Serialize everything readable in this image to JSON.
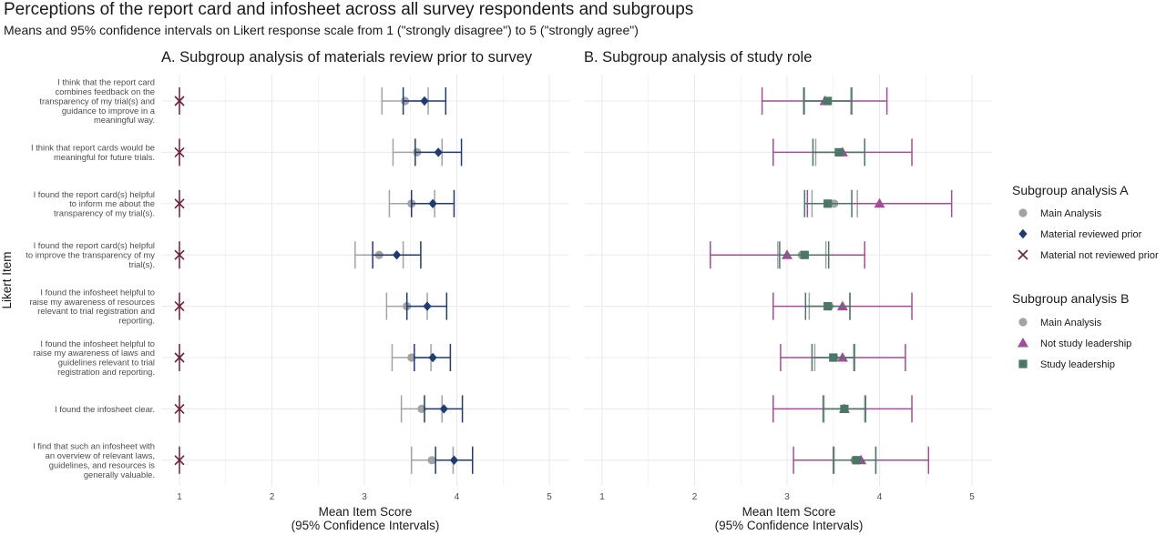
{
  "figure": {
    "title": "Perceptions of the report card and infosheet across all survey respondents and subgroups",
    "subtitle": "Means and 95% confidence intervals on Likert response scale from 1 (\"strongly disagree\") to 5 (\"strongly agree\")",
    "y_axis_title": "Likert Item"
  },
  "colors": {
    "main": "#a3a3a3",
    "reviewed": "#1f3b73",
    "not_reviewed": "#6b1f3a",
    "not_leadership": "#a24c9a",
    "leadership": "#4a7766",
    "grid": "#ebebeb"
  },
  "legends": [
    {
      "title": "Subgroup analysis A",
      "entries": [
        {
          "label": "Main Analysis",
          "shape": "circle",
          "color": "#a3a3a3"
        },
        {
          "label": "Material reviewed prior",
          "shape": "diamond",
          "color": "#1f3b73"
        },
        {
          "label": "Material not reviewed prior",
          "shape": "cross",
          "color": "#6b1f3a"
        }
      ]
    },
    {
      "title": "Subgroup analysis B",
      "entries": [
        {
          "label": "Main Analysis",
          "shape": "circle",
          "color": "#a3a3a3"
        },
        {
          "label": "Not study leadership",
          "shape": "triangle",
          "color": "#a24c9a"
        },
        {
          "label": "Study leadership",
          "shape": "square",
          "color": "#4a7766"
        }
      ]
    }
  ],
  "chart_data": [
    {
      "type": "scatter",
      "title": "A. Subgroup analysis of materials review prior to survey",
      "xlabel": "Mean Item Score\n(95% Confidence Intervals)",
      "ylabel": "Likert Item",
      "xlim": [
        0.5,
        5.2
      ],
      "xticks": [
        1,
        2,
        3,
        4,
        5
      ],
      "grid": true,
      "categories": [
        "I think that the report card combines feedback on the transparency of my trial(s) and guidance to improve in a meaningful way.",
        "I think that report cards would be meaningful for future trials.",
        "I found the report card(s) helpful to inform me about the transparency of my trial(s).",
        "I found the report card(s) helpful to improve the transparency of my trial(s).",
        "I found the infosheet helpful to raise my awareness of resources relevant to trial registration and reporting.",
        "I found the infosheet helpful to raise my awareness of laws and guidelines relevant to trial registration and reporting.",
        "I found the infosheet clear.",
        "I find that such an infosheet with an overview of relevant laws, guidelines, and resources is generally valuable."
      ],
      "category_lines": [
        [
          "I think that the report card",
          "combines feedback on the",
          "transparency of my trial(s) and",
          "guidance to improve in a",
          "meaningful way."
        ],
        [
          "I think that report cards would be",
          "meaningful for future trials."
        ],
        [
          "I found the report card(s) helpful",
          "to inform me about the",
          "transparency of my trial(s)."
        ],
        [
          "I found the report card(s) helpful",
          "to improve the transparency of my",
          "trial(s)."
        ],
        [
          "I found the infosheet helpful to",
          "raise my awareness of resources",
          "relevant to trial registration and",
          "reporting."
        ],
        [
          "I found the infosheet helpful to",
          "raise my awareness of laws and",
          "guidelines relevant to trial",
          "registration and reporting."
        ],
        [
          "I found the infosheet clear."
        ],
        [
          "I find that such an infosheet with",
          "an overview of relevant laws,",
          "guidelines, and resources is",
          "generally valuable."
        ]
      ],
      "series": [
        {
          "name": "Main Analysis",
          "shape": "circle",
          "color": "#a3a3a3",
          "mean": [
            3.44,
            3.57,
            3.51,
            3.16,
            3.46,
            3.51,
            3.62,
            3.73
          ],
          "lower": [
            3.19,
            3.31,
            3.27,
            2.9,
            3.24,
            3.3,
            3.4,
            3.51
          ],
          "upper": [
            3.69,
            3.84,
            3.76,
            3.42,
            3.68,
            3.72,
            3.84,
            3.96
          ]
        },
        {
          "name": "Material reviewed prior",
          "shape": "diamond",
          "color": "#1f3b73",
          "mean": [
            3.65,
            3.8,
            3.74,
            3.35,
            3.68,
            3.74,
            3.86,
            3.97
          ],
          "lower": [
            3.42,
            3.55,
            3.51,
            3.09,
            3.46,
            3.54,
            3.65,
            3.77
          ],
          "upper": [
            3.88,
            4.05,
            3.97,
            3.61,
            3.89,
            3.93,
            4.06,
            4.17
          ]
        },
        {
          "name": "Material not reviewed prior",
          "shape": "cross",
          "color": "#6b1f3a",
          "mean": [
            1,
            1,
            1,
            1,
            1,
            1,
            1,
            1
          ],
          "lower": [
            1,
            1,
            1,
            1,
            1,
            1,
            1,
            1
          ],
          "upper": [
            1,
            1,
            1,
            1,
            1,
            1,
            1,
            1
          ]
        }
      ]
    },
    {
      "type": "scatter",
      "title": "B. Subgroup analysis of study role",
      "xlabel": "Mean Item Score\n(95% Confidence Intervals)",
      "xlim": [
        0.5,
        5.2
      ],
      "xticks": [
        1,
        2,
        3,
        4,
        5
      ],
      "grid": true,
      "series": [
        {
          "name": "Main Analysis",
          "shape": "circle",
          "color": "#a3a3a3",
          "mean": [
            3.44,
            3.57,
            3.51,
            3.16,
            3.46,
            3.51,
            3.62,
            3.73
          ],
          "lower": [
            3.19,
            3.31,
            3.27,
            2.9,
            3.24,
            3.3,
            3.4,
            3.51
          ],
          "upper": [
            3.69,
            3.84,
            3.76,
            3.42,
            3.68,
            3.72,
            3.84,
            3.96
          ]
        },
        {
          "name": "Not study leadership",
          "shape": "triangle",
          "color": "#a24c9a",
          "mean": [
            3.41,
            3.6,
            4.0,
            3.0,
            3.6,
            3.6,
            3.62,
            3.8
          ],
          "lower": [
            2.73,
            2.85,
            3.22,
            2.17,
            2.85,
            2.93,
            2.85,
            3.07
          ],
          "upper": [
            4.08,
            4.35,
            4.78,
            3.84,
            4.35,
            4.28,
            4.35,
            4.53
          ]
        },
        {
          "name": "Study leadership",
          "shape": "square",
          "color": "#4a7766",
          "mean": [
            3.44,
            3.56,
            3.44,
            3.19,
            3.44,
            3.5,
            3.62,
            3.75
          ],
          "lower": [
            3.18,
            3.28,
            3.19,
            2.92,
            3.2,
            3.27,
            3.39,
            3.5
          ],
          "upper": [
            3.7,
            3.84,
            3.7,
            3.45,
            3.68,
            3.73,
            3.85,
            3.96
          ]
        }
      ]
    }
  ]
}
